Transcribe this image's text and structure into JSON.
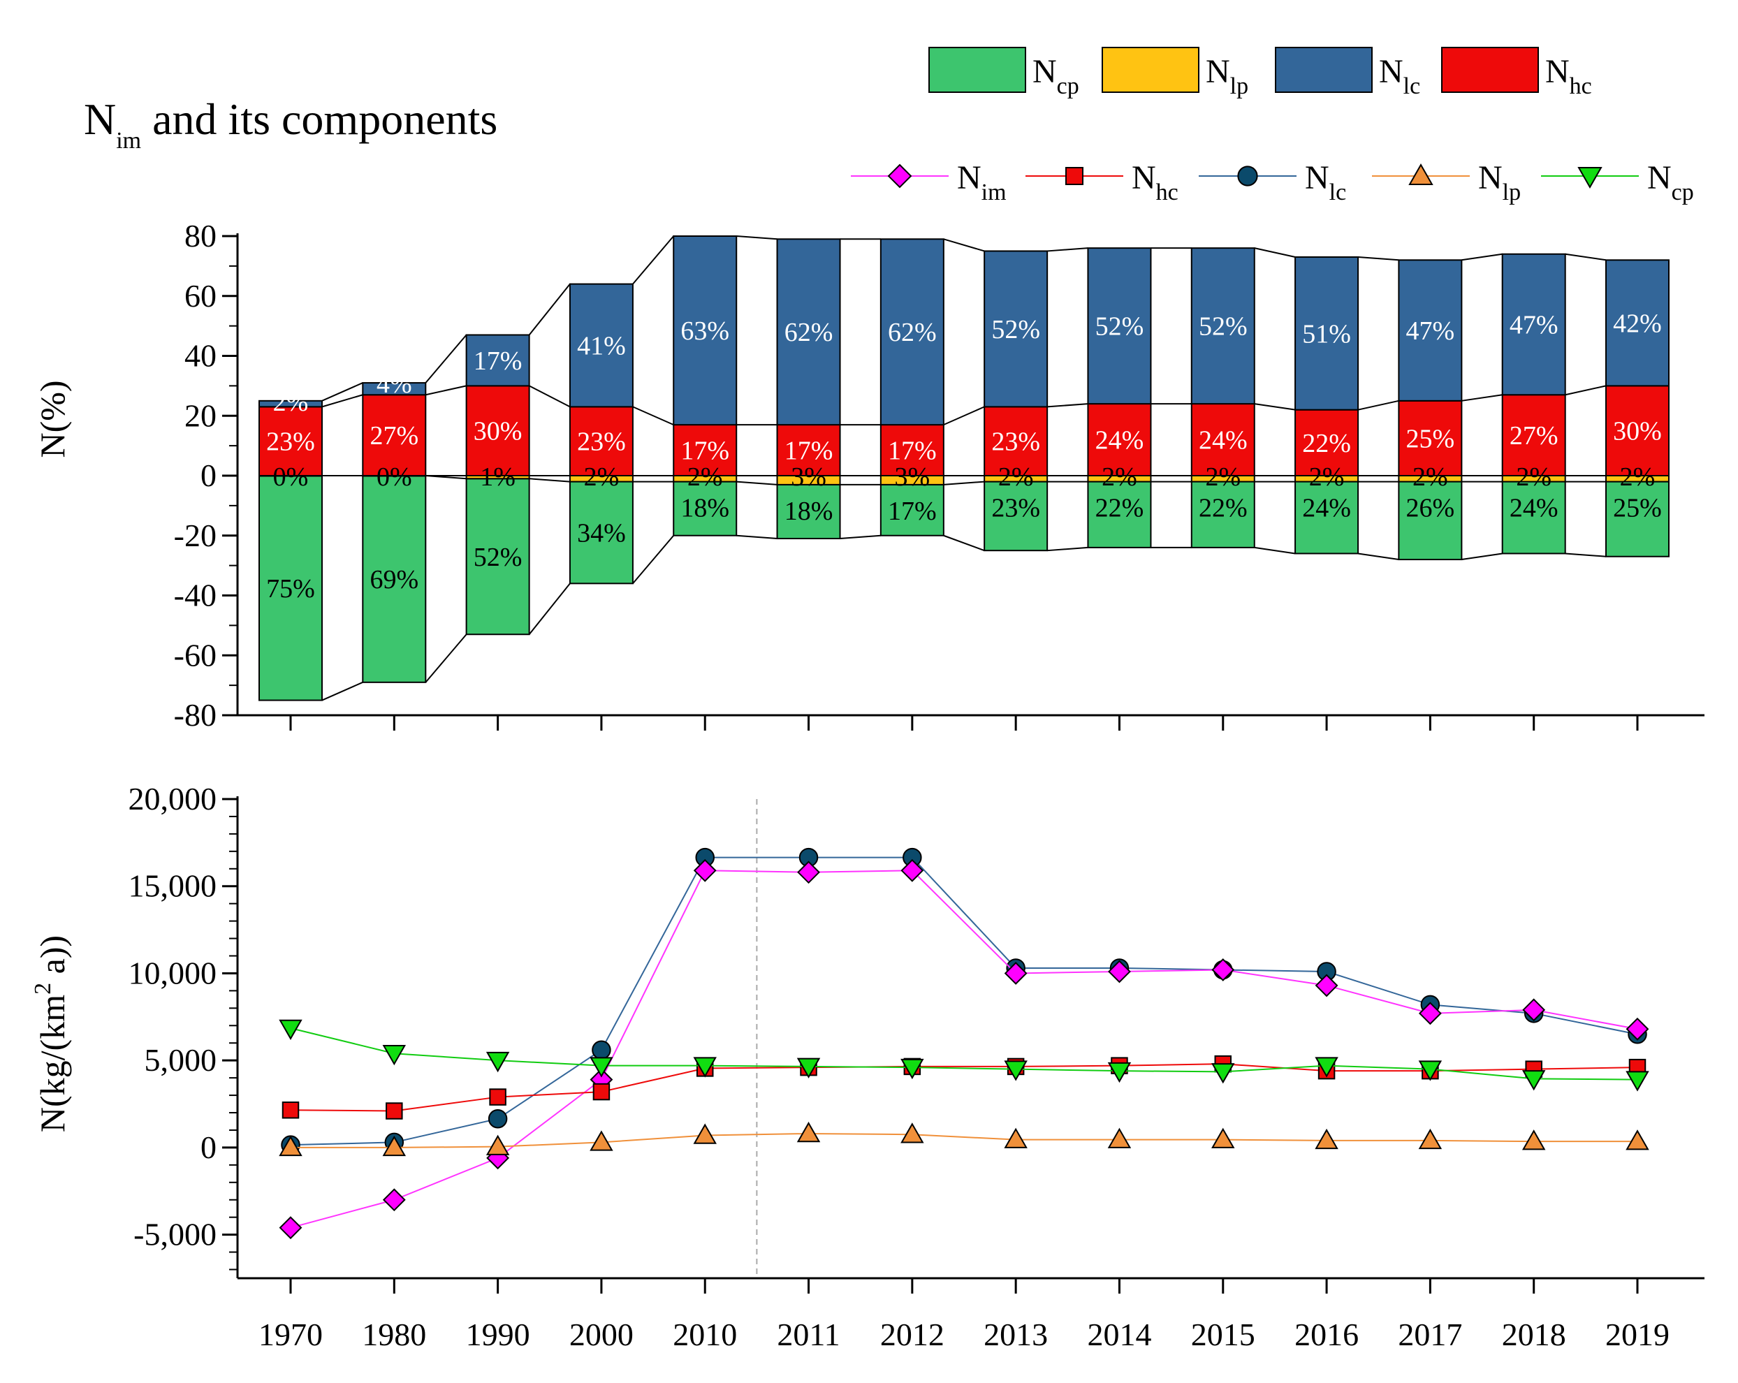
{
  "title": {
    "main": "N",
    "sub": "im",
    "rest": " and its components"
  },
  "bar_legend": [
    {
      "main": "N",
      "sub": "cp",
      "color": "#3dc56e"
    },
    {
      "main": "N",
      "sub": "lp",
      "color": "#ffc312"
    },
    {
      "main": "N",
      "sub": "lc",
      "color": "#336699"
    },
    {
      "main": "N",
      "sub": "hc",
      "color": "#ee0a0a"
    }
  ],
  "line_legend": [
    {
      "main": "N",
      "sub": "im",
      "color": "#ff00ff",
      "marker": "diamond",
      "line": "#ff33ff"
    },
    {
      "main": "N",
      "sub": "hc",
      "color": "#ee0a0a",
      "marker": "square",
      "line": "#ee0a0a"
    },
    {
      "main": "N",
      "sub": "lc",
      "color": "#0b4a6b",
      "marker": "circle",
      "line": "#336699"
    },
    {
      "main": "N",
      "sub": "lp",
      "color": "#f0903a",
      "marker": "triangle-up",
      "line": "#f0903a"
    },
    {
      "main": "N",
      "sub": "cp",
      "color": "#11dd11",
      "marker": "triangle-down",
      "line": "#11cc11"
    }
  ],
  "top_axis": {
    "ylabel": "N(%)",
    "yticks": [
      "80",
      "60",
      "40",
      "20",
      "0",
      "-20",
      "-40",
      "-60",
      "-80"
    ]
  },
  "bottom_axis": {
    "ylabel_pre": "N(kg/(km",
    "ylabel_sup": "2",
    "ylabel_post": " a))",
    "yticks": [
      "20,000",
      "15,000",
      "10,000",
      "5,000",
      "0",
      "-5,000"
    ]
  },
  "chart_data": [
    {
      "type": "bar",
      "title": "Nim and its components",
      "ylabel": "N(%)",
      "ylim": [
        -80,
        80
      ],
      "categories": [
        "1970",
        "1980",
        "1990",
        "2000",
        "2010",
        "2011",
        "2012",
        "2013",
        "2014",
        "2015",
        "2016",
        "2017",
        "2018",
        "2019"
      ],
      "series": [
        {
          "name": "Ncp",
          "values": [
            -75,
            -69,
            -52,
            -34,
            -18,
            -18,
            -17,
            -23,
            -22,
            -22,
            -24,
            -26,
            -24,
            -25
          ],
          "labels": [
            "75%",
            "69%",
            "52%",
            "34%",
            "18%",
            "18%",
            "17%",
            "23%",
            "22%",
            "22%",
            "24%",
            "26%",
            "24%",
            "25%"
          ]
        },
        {
          "name": "Nlp",
          "values": [
            0,
            0,
            -1,
            -2,
            -2,
            -3,
            -3,
            -2,
            -2,
            -2,
            -2,
            -2,
            -2,
            -2
          ],
          "labels": [
            "0%",
            "0%",
            "1%",
            "2%",
            "2%",
            "3%",
            "3%",
            "2%",
            "2%",
            "2%",
            "2%",
            "2%",
            "2%",
            "2%"
          ]
        },
        {
          "name": "Nhc",
          "values": [
            23,
            27,
            30,
            23,
            17,
            17,
            17,
            23,
            24,
            24,
            22,
            25,
            27,
            30
          ],
          "labels": [
            "23%",
            "27%",
            "30%",
            "23%",
            "17%",
            "17%",
            "17%",
            "23%",
            "24%",
            "24%",
            "22%",
            "25%",
            "27%",
            "30%"
          ]
        },
        {
          "name": "Nlc",
          "values": [
            2,
            4,
            17,
            41,
            63,
            62,
            62,
            52,
            52,
            52,
            51,
            47,
            47,
            42
          ],
          "labels": [
            "2%",
            "4%",
            "17%",
            "41%",
            "63%",
            "62%",
            "62%",
            "52%",
            "52%",
            "52%",
            "51%",
            "47%",
            "47%",
            "42%"
          ]
        }
      ]
    },
    {
      "type": "line",
      "ylabel": "N(kg/(km2 a))",
      "ylim": [
        -7500,
        20000
      ],
      "categories": [
        "1970",
        "1980",
        "1990",
        "2000",
        "2010",
        "2011",
        "2012",
        "2013",
        "2014",
        "2015",
        "2016",
        "2017",
        "2018",
        "2019"
      ],
      "series": [
        {
          "name": "Nlc",
          "values": [
            150,
            300,
            1650,
            5600,
            16650,
            16650,
            16650,
            10300,
            10300,
            10200,
            10100,
            8200,
            7700,
            6500
          ]
        },
        {
          "name": "Nim",
          "values": [
            -4600,
            -3000,
            -600,
            3900,
            15900,
            15800,
            15900,
            10000,
            10100,
            10200,
            9300,
            7700,
            7900,
            6800
          ]
        },
        {
          "name": "Nhc",
          "values": [
            2150,
            2100,
            2900,
            3200,
            4550,
            4600,
            4650,
            4650,
            4700,
            4800,
            4400,
            4400,
            4500,
            4600
          ]
        },
        {
          "name": "Nlp",
          "values": [
            0,
            0,
            50,
            300,
            700,
            800,
            750,
            450,
            450,
            450,
            400,
            400,
            350,
            350
          ]
        },
        {
          "name": "Ncp",
          "values": [
            6850,
            5400,
            5000,
            4700,
            4700,
            4650,
            4600,
            4500,
            4400,
            4350,
            4700,
            4500,
            3950,
            3900
          ]
        }
      ]
    }
  ]
}
